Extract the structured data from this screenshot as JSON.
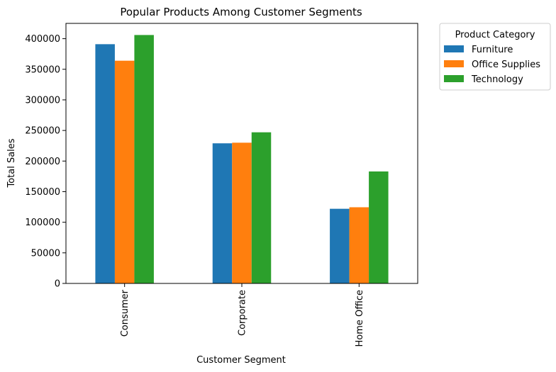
{
  "chart_data": {
    "type": "bar",
    "title": "Popular Products Among Customer Segments",
    "xlabel": "Customer Segment",
    "ylabel": "Total Sales",
    "categories": [
      "Consumer",
      "Corporate",
      "Home Office"
    ],
    "series": [
      {
        "name": "Furniture",
        "color": "#1f77b4",
        "values": [
          391000,
          229000,
          122000
        ]
      },
      {
        "name": "Office Supplies",
        "color": "#ff7f0e",
        "values": [
          364000,
          230000,
          124500
        ]
      },
      {
        "name": "Technology",
        "color": "#2ca02c",
        "values": [
          406000,
          247000,
          183000
        ]
      }
    ],
    "ylim": [
      0,
      425000
    ],
    "yticks": [
      0,
      50000,
      100000,
      150000,
      200000,
      250000,
      300000,
      350000,
      400000
    ],
    "legend": {
      "title": "Product Category",
      "placement": "outside-top-right"
    },
    "grid": false
  }
}
